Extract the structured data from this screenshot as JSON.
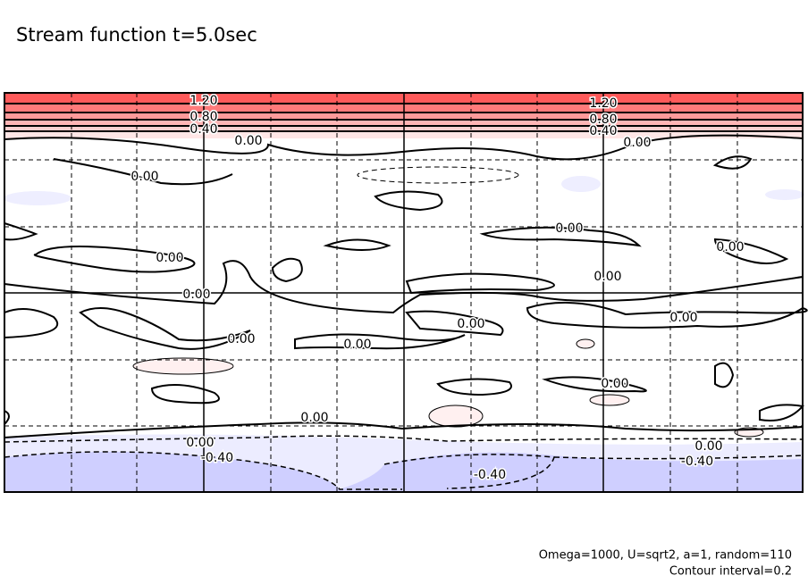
{
  "chart_data": {
    "type": "contour",
    "title": "Stream function t=5.0sec",
    "notes": [
      "Omega=1000, U=sqrt2, a=1, random=110",
      "Contour interval=0.2"
    ],
    "contour_labels": [
      "1.20",
      "1.20",
      "0.80",
      "0.80",
      "0.40",
      "0.40",
      "0.00",
      "0.00",
      "0.00",
      "0.00",
      "0.00",
      "0.00",
      "0.00",
      "0.00",
      "0.00",
      "0.00",
      "0.00",
      "0.00",
      "0.00",
      "0.00",
      "0.00",
      "0.00",
      "-0.40",
      "-0.40",
      "-0.40"
    ]
  }
}
